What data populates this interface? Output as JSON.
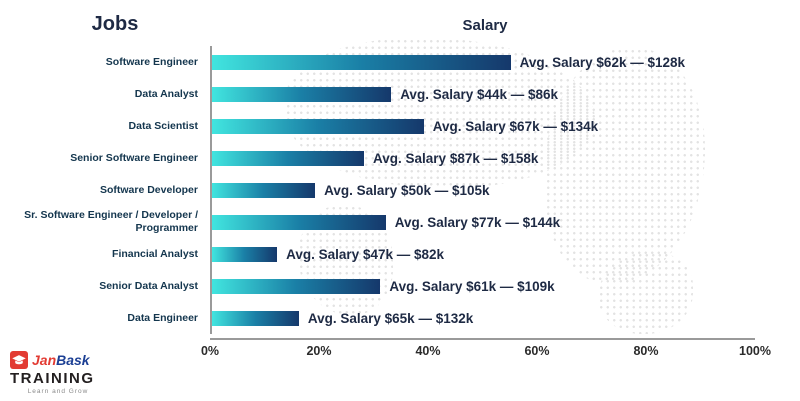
{
  "header": {
    "jobs_title": "Jobs",
    "salary_title": "Salary"
  },
  "chart_data": {
    "type": "bar",
    "orientation": "horizontal",
    "title": "Salary",
    "xlabel": "",
    "ylabel": "Jobs",
    "xlim": [
      0,
      100
    ],
    "xticks": [
      "0%",
      "20%",
      "40%",
      "60%",
      "80%",
      "100%"
    ],
    "grid": false,
    "legend": "none",
    "categories": [
      "Software Engineer",
      "Data Analyst",
      "Data Scientist",
      "Senior Software Engineer",
      "Software Developer",
      "Sr. Software Engineer / Developer / Programmer",
      "Financial Analyst",
      "Senior Data Analyst",
      "Data Engineer"
    ],
    "values": [
      55,
      33,
      39,
      28,
      19,
      32,
      12,
      31,
      16
    ],
    "bar_labels": [
      "Avg. Salary $62k — $128k",
      "Avg. Salary $44k — $86k",
      "Avg. Salary $67k — $134k",
      "Avg. Salary $87k — $158k",
      "Avg. Salary $50k — $105k",
      "Avg. Salary $77k — $144k",
      "Avg. Salary $47k — $82k",
      "Avg. Salary $61k — $109k",
      "Avg. Salary $65k — $132k"
    ],
    "bar_gradient": [
      "#41e5df",
      "#1a7fa6",
      "#15386b"
    ],
    "axis_color": "#9a9a9a",
    "label_color": "#1e2a44"
  },
  "logo": {
    "jan": "Jan",
    "bask": "Bask",
    "training": "TRAINING",
    "tagline": "Learn and Grow"
  }
}
